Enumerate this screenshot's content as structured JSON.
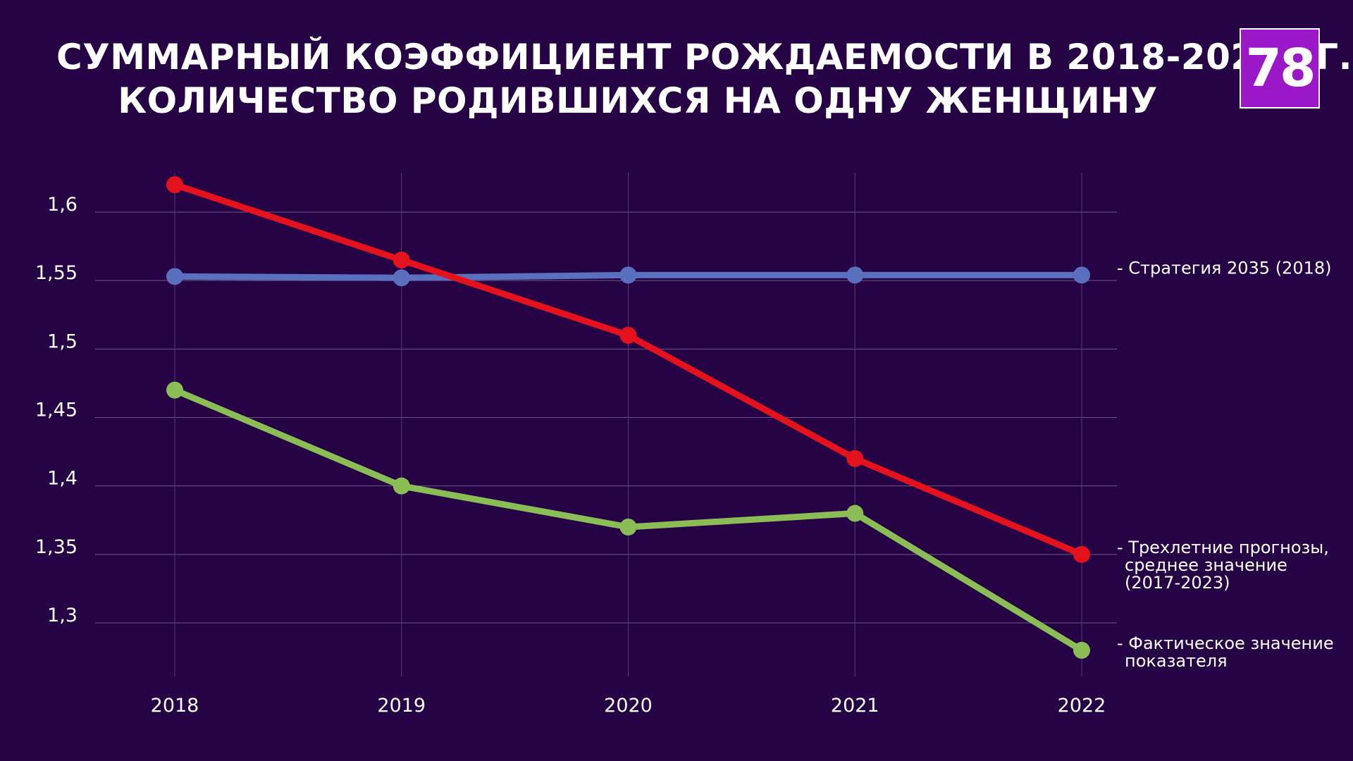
{
  "header": {
    "title_line1": "СУММАРНЫЙ КОЭФФИЦИЕНТ РОЖДАЕМОСТИ В 2018-2022 ГГ.,",
    "title_line2": "КОЛИЧЕСТВО РОДИВШИХСЯ НА ОДНУ ЖЕНЩИНУ",
    "logo": "78",
    "logo_color": "#9a18c8"
  },
  "chart_data": {
    "type": "line",
    "title": "СУММАРНЫЙ КОЭФФИЦИЕНТ РОЖДАЕМОСТИ В 2018-2022 ГГ., КОЛИЧЕСТВО РОДИВШИХСЯ НА ОДНУ ЖЕНЩИНУ",
    "x": [
      "2018",
      "2019",
      "2020",
      "2021",
      "2022"
    ],
    "ylim": [
      1.26,
      1.64
    ],
    "yticks": [
      1.3,
      1.35,
      1.4,
      1.45,
      1.5,
      1.55,
      1.6
    ],
    "ytick_labels": [
      "1,3",
      "1,35",
      "1,4",
      "1,45",
      "1,5",
      "1,55",
      "1,6"
    ],
    "grid": true,
    "legend_placement": "right",
    "series": [
      {
        "name": "- Стратегия 2035 (2018)",
        "label_lines": [
          "- Стратегия 2035 (2018)"
        ],
        "color": "#5b6fbf",
        "values": [
          1.553,
          1.552,
          1.554,
          1.554,
          1.554
        ]
      },
      {
        "name": "- Трехлетние прогнозы, среднее значение (2017-2023)",
        "label_lines": [
          "- Трехлетние прогнозы,",
          "среднее значение",
          "(2017-2023)"
        ],
        "color": "#e3121c",
        "values": [
          1.62,
          1.565,
          1.51,
          1.42,
          1.35
        ]
      },
      {
        "name": "- Фактическое значение показателя",
        "label_lines": [
          "- Фактическое значение",
          "показателя"
        ],
        "color": "#8bbd57",
        "values": [
          1.47,
          1.4,
          1.37,
          1.38,
          1.28
        ]
      }
    ]
  }
}
